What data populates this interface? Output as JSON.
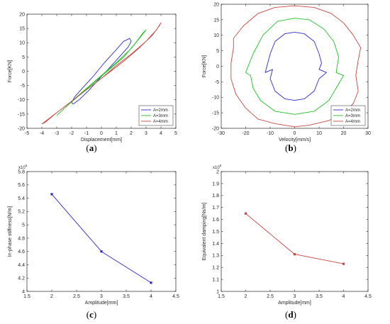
{
  "figure": {
    "captions": [
      "a",
      "b",
      "c",
      "d"
    ]
  },
  "chart_data": [
    {
      "id": "a",
      "type": "line",
      "title": "",
      "xlabel": "Displacement[mm]",
      "ylabel": "Force[KN]",
      "xlim": [
        -5,
        5
      ],
      "ylim": [
        -20,
        20
      ],
      "xticks": [
        -5,
        -4,
        -3,
        -2,
        -1,
        0,
        1,
        2,
        3,
        4,
        5
      ],
      "yticks": [
        -20,
        -15,
        -10,
        -5,
        0,
        5,
        10,
        15,
        20
      ],
      "grid": false,
      "legend_position": "bottom-right",
      "series": [
        {
          "name": "A=2mm",
          "color": "#2b2bd0",
          "x": [
            -2.0,
            -1.8,
            -1.2,
            -0.5,
            0.2,
            0.9,
            1.5,
            1.9,
            2.0,
            1.8,
            1.2,
            0.5,
            -0.2,
            -0.9,
            -1.5,
            -1.9,
            -2.0
          ],
          "y": [
            -11.0,
            -9.0,
            -5.5,
            -1.5,
            3.0,
            7.0,
            10.5,
            11.5,
            10.5,
            8.5,
            5.0,
            1.0,
            -3.0,
            -7.0,
            -10.0,
            -11.5,
            -11.0
          ]
        },
        {
          "name": "A=3mm",
          "color": "#22c022",
          "x": [
            -3.0,
            -2.5,
            -1.5,
            -0.5,
            0.5,
            1.5,
            2.3,
            2.8,
            3.0,
            2.7,
            2.0,
            1.0,
            0.0,
            -1.0,
            -2.0,
            -2.8,
            -3.0
          ],
          "y": [
            -15.5,
            -13.0,
            -8.5,
            -4.0,
            0.5,
            5.0,
            10.0,
            13.5,
            14.5,
            12.5,
            8.0,
            3.0,
            -1.5,
            -6.0,
            -10.5,
            -14.5,
            -15.5
          ]
        },
        {
          "name": "A=4mm",
          "color": "#c8463c",
          "x": [
            -4.0,
            -3.5,
            -2.5,
            -1.5,
            -0.5,
            0.5,
            1.5,
            2.5,
            3.4,
            3.9,
            4.0,
            3.7,
            3.0,
            2.0,
            1.0,
            0.0,
            -1.0,
            -2.0,
            -3.0,
            -3.8,
            -4.0
          ],
          "y": [
            -18.5,
            -16.5,
            -12.5,
            -8.5,
            -4.5,
            -0.5,
            3.5,
            8.0,
            12.5,
            16.0,
            17.0,
            14.5,
            10.5,
            6.0,
            2.0,
            -2.5,
            -6.5,
            -10.5,
            -14.5,
            -18.0,
            -18.5
          ]
        }
      ]
    },
    {
      "id": "b",
      "type": "line",
      "title": "",
      "xlabel": "Velocity[mm/s]",
      "ylabel": "Force[KN]",
      "xlim": [
        -30,
        30
      ],
      "ylim": [
        -20,
        20
      ],
      "xticks": [
        -30,
        -20,
        -10,
        0,
        10,
        20,
        30
      ],
      "yticks": [
        -20,
        -15,
        -10,
        -5,
        0,
        5,
        10,
        15,
        20
      ],
      "grid": false,
      "legend_position": "bottom-right",
      "series": [
        {
          "name": "A=2mm",
          "color": "#2b2bd0",
          "x": [
            0,
            4,
            8,
            10,
            11,
            10,
            13,
            10,
            8,
            4,
            0,
            -4,
            -8,
            -10,
            -9,
            -12,
            -10,
            -8,
            -4,
            0
          ],
          "y": [
            11,
            10.5,
            8,
            4,
            1,
            -1,
            -2,
            -4,
            -8,
            -10.5,
            -11,
            -10.5,
            -8,
            -4,
            -1,
            -2,
            4,
            8,
            10.5,
            11
          ]
        },
        {
          "name": "A=3mm",
          "color": "#22c022",
          "x": [
            0,
            6,
            12,
            16,
            18,
            17,
            20,
            17,
            14,
            8,
            0,
            -8,
            -14,
            -17,
            -18,
            -20,
            -17,
            -13,
            -7,
            0
          ],
          "y": [
            15.5,
            15,
            12,
            8,
            3,
            -2,
            -3,
            -7,
            -11,
            -14.5,
            -15.5,
            -14.5,
            -11,
            -7,
            -3,
            -2,
            4,
            10,
            14.5,
            15.5
          ]
        },
        {
          "name": "A=4mm",
          "color": "#c8463c",
          "x": [
            0,
            8,
            15,
            20,
            24,
            27,
            26,
            25,
            26,
            24,
            20,
            14,
            6,
            0,
            -8,
            -15,
            -20,
            -24,
            -26,
            -26,
            -25,
            -25,
            -21,
            -15,
            -8,
            0
          ],
          "y": [
            19.5,
            19,
            17,
            14,
            10,
            6,
            2,
            -3,
            -8,
            -12,
            -15,
            -17.5,
            -19,
            -19.5,
            -18.5,
            -17,
            -13.5,
            -9,
            -4,
            1,
            6,
            9,
            13,
            17,
            19,
            19.5
          ]
        }
      ]
    },
    {
      "id": "c",
      "type": "line",
      "title": "",
      "xlabel": "Amplitude[mm]",
      "ylabel": "In-phase stiffness[N/m]",
      "multiplier": "x10",
      "multiplier_exp": "6",
      "xlim": [
        1.5,
        4.5
      ],
      "ylim": [
        4,
        5.8
      ],
      "xticks": [
        1.5,
        2,
        2.5,
        3,
        3.5,
        4,
        4.5
      ],
      "yticks": [
        4,
        4.2,
        4.4,
        4.6,
        4.8,
        5,
        5.2,
        5.4,
        5.6,
        5.8
      ],
      "grid": false,
      "series": [
        {
          "name": "",
          "color": "#2b2bd0",
          "x": [
            2,
            3,
            4
          ],
          "y": [
            5.46,
            4.6,
            4.13
          ]
        }
      ]
    },
    {
      "id": "d",
      "type": "line",
      "title": "",
      "xlabel": "Amplitude[mm]",
      "ylabel": "Equivalent damping[Ns/m]",
      "multiplier": "x10",
      "multiplier_exp": "5",
      "xlim": [
        1.5,
        4.5
      ],
      "ylim": [
        1,
        2
      ],
      "xticks": [
        1.5,
        2,
        2.5,
        3,
        3.5,
        4,
        4.5
      ],
      "yticks": [
        1,
        1.1,
        1.2,
        1.3,
        1.4,
        1.5,
        1.6,
        1.7,
        1.8,
        1.9,
        2
      ],
      "grid": false,
      "series": [
        {
          "name": "",
          "color": "#c8463c",
          "x": [
            2,
            3,
            4
          ],
          "y": [
            1.65,
            1.31,
            1.23
          ]
        }
      ]
    }
  ]
}
